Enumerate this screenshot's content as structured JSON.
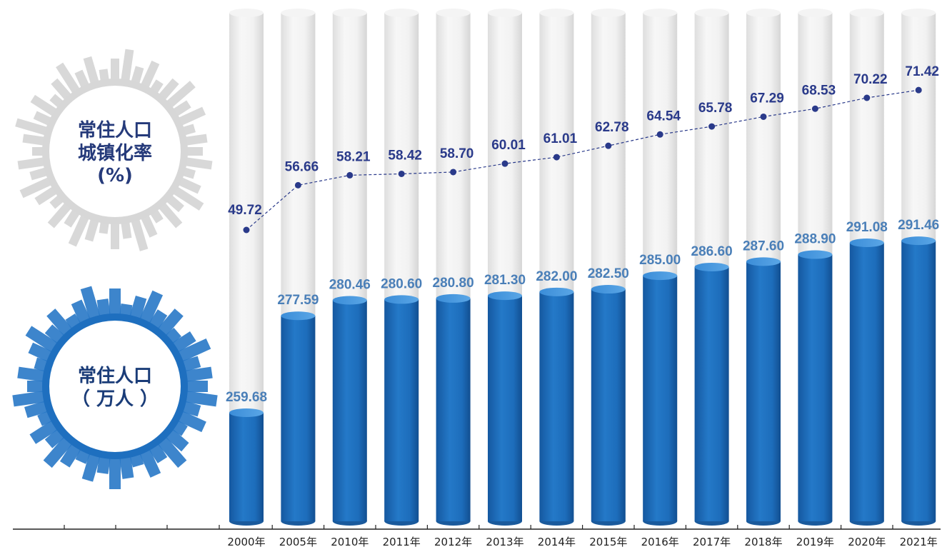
{
  "legend": {
    "rate_badge": {
      "line1": "常住人口",
      "line2": "城镇化率",
      "line3": "(%)"
    },
    "population_badge": {
      "line1": "常住人口",
      "line2": "（ 万人 ）"
    }
  },
  "colors": {
    "bar_fill": "#1f6fbe",
    "bar_fill_dark": "#155a9e",
    "bar_bg": "#efeeee",
    "line_color": "#2a3a8a",
    "population_label": "#4a7fb8",
    "rate_label": "#2a3a8a",
    "rate_badge_ring": "#dcdcdc",
    "population_badge_ring": "#1e6fbf"
  },
  "chart_data": {
    "type": "bar",
    "categories": [
      "2000年",
      "2005年",
      "2010年",
      "2011年",
      "2012年",
      "2013年",
      "2014年",
      "2015年",
      "2016年",
      "2017年",
      "2018年",
      "2019年",
      "2020年",
      "2021年"
    ],
    "series": [
      {
        "name": "常住人口（万人）",
        "type": "bar",
        "values": [
          259.68,
          277.59,
          280.46,
          280.6,
          280.8,
          281.3,
          282.0,
          282.5,
          285.0,
          286.6,
          287.6,
          288.9,
          291.08,
          291.46
        ],
        "labels": [
          "259.68",
          "277.59",
          "280.46",
          "280.60",
          "280.80",
          "281.30",
          "282.00",
          "282.50",
          "285.00",
          "286.60",
          "287.60",
          "288.90",
          "291.08",
          "291.46"
        ]
      },
      {
        "name": "常住人口城镇化率（%）",
        "type": "line",
        "values": [
          49.72,
          56.66,
          58.21,
          58.42,
          58.7,
          60.01,
          61.01,
          62.78,
          64.54,
          65.78,
          67.29,
          68.53,
          70.22,
          71.42
        ],
        "labels": [
          "49.72",
          "56.66",
          "58.21",
          "58.42",
          "58.70",
          "60.01",
          "61.01",
          "62.78",
          "64.54",
          "65.78",
          "67.29",
          "68.53",
          "70.22",
          "71.42"
        ]
      }
    ],
    "title": "",
    "xlabel": "",
    "ylabel": "",
    "grid": false
  }
}
